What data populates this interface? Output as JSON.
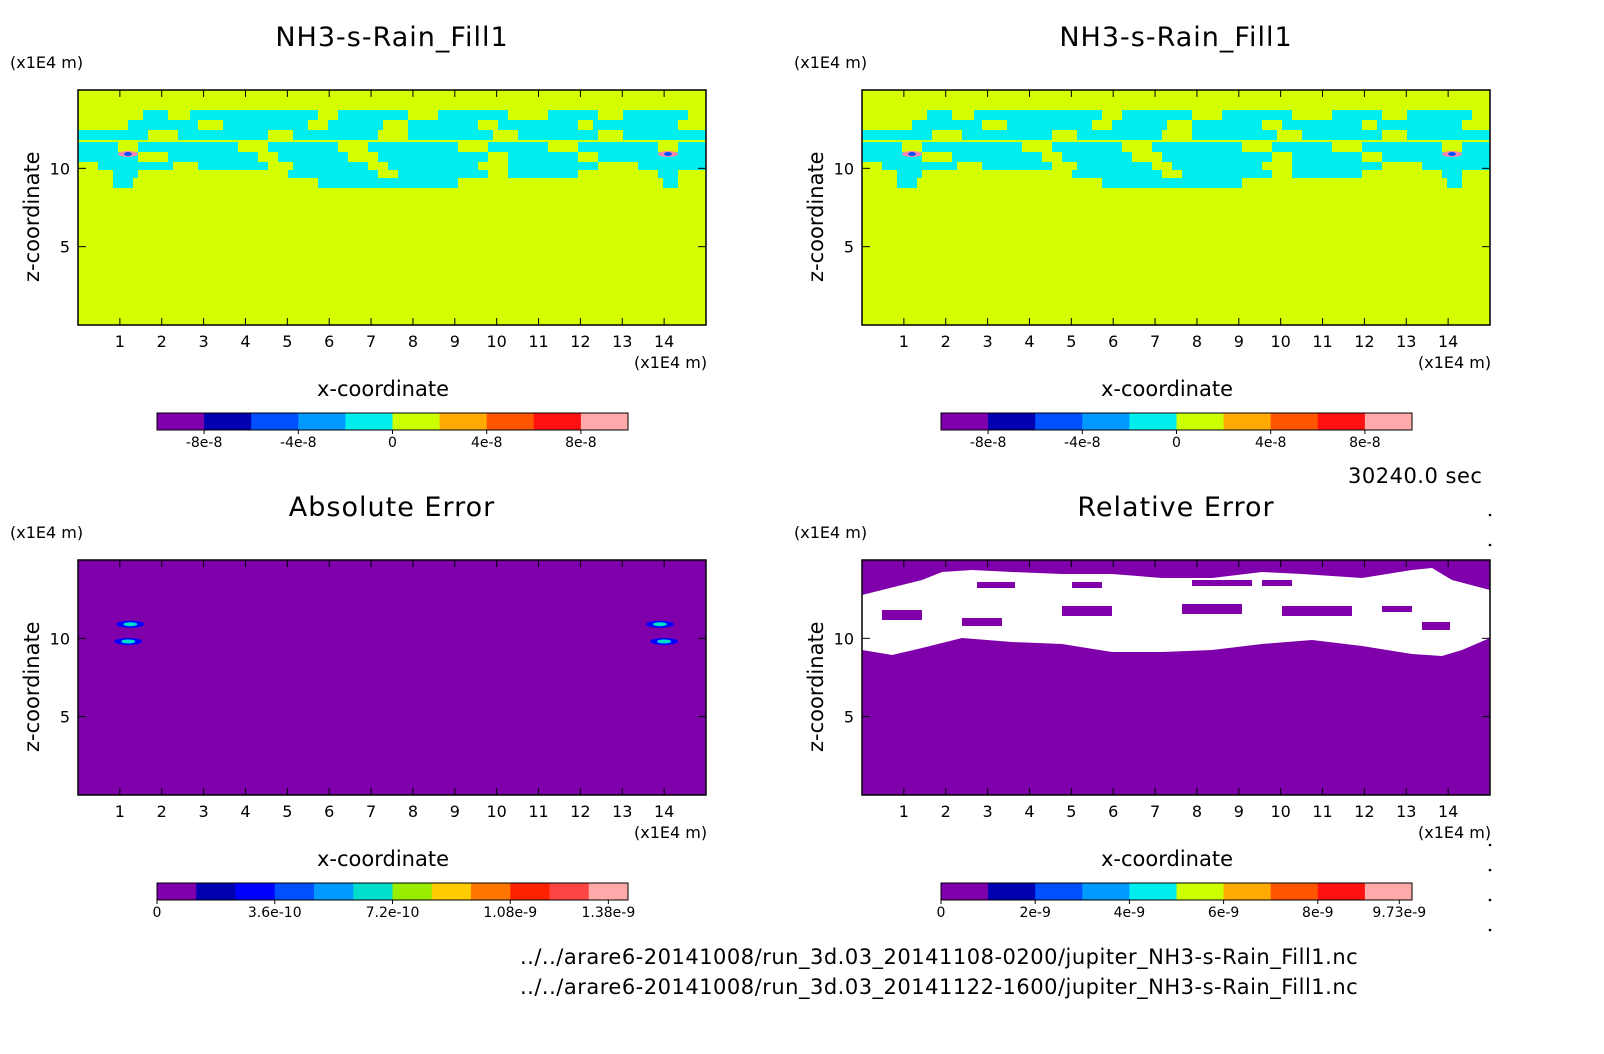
{
  "panels": [
    {
      "id": "tl",
      "title": "NH3-s-Rain_Fill1",
      "ylabel": "z-coordinate",
      "xlabel": "x-coordinate",
      "yunit": "(x1E4 m)",
      "xunit": "(x1E4 m)",
      "colorbar": {
        "colors": [
          "#7f00aa",
          "#0000b0",
          "#0050ff",
          "#0099ff",
          "#00eeee",
          "#ccff00",
          "#ffaa00",
          "#ff5500",
          "#ff1111",
          "#ffaaaa"
        ],
        "labels": [
          "-8e-8",
          "-4e-8",
          "0",
          "4e-8",
          "8e-8"
        ]
      }
    },
    {
      "id": "tr",
      "title": "NH3-s-Rain_Fill1",
      "ylabel": "z-coordinate",
      "xlabel": "x-coordinate",
      "yunit": "(x1E4 m)",
      "xunit": "(x1E4 m)",
      "colorbar": {
        "colors": [
          "#7f00aa",
          "#0000b0",
          "#0050ff",
          "#0099ff",
          "#00eeee",
          "#ccff00",
          "#ffaa00",
          "#ff5500",
          "#ff1111",
          "#ffaaaa"
        ],
        "labels": [
          "-8e-8",
          "-4e-8",
          "0",
          "4e-8",
          "8e-8"
        ]
      }
    },
    {
      "id": "bl",
      "title": "Absolute Error",
      "ylabel": "z-coordinate",
      "xlabel": "x-coordinate",
      "yunit": "(x1E4 m)",
      "xunit": "(x1E4 m)",
      "colorbar": {
        "colors": [
          "#7f00aa",
          "#0000b0",
          "#0000ff",
          "#0050ff",
          "#0099ff",
          "#00ddcc",
          "#99ee00",
          "#ffcc00",
          "#ff7700",
          "#ff2200",
          "#ff4444",
          "#ffaaaa"
        ],
        "labels": [
          "0",
          "3.6e-10",
          "7.2e-10",
          "1.08e-9",
          "1.38e-9"
        ]
      }
    },
    {
      "id": "br",
      "title": "Relative Error",
      "ylabel": "z-coordinate",
      "xlabel": "x-coordinate",
      "yunit": "(x1E4 m)",
      "xunit": "(x1E4 m)",
      "colorbar": {
        "colors": [
          "#7f00aa",
          "#0000b0",
          "#0050ff",
          "#0099ff",
          "#00eeee",
          "#ccff00",
          "#ffaa00",
          "#ff5500",
          "#ff1111",
          "#ffaaaa"
        ],
        "labels": [
          "0",
          "2e-9",
          "4e-9",
          "6e-9",
          "8e-9",
          "9.73e-9"
        ]
      }
    }
  ],
  "time_label": "30240.0 sec",
  "file_paths": [
    "../../arare6-20141008/run_3d.03_20141108-0200/jupiter_NH3-s-Rain_Fill1.nc",
    "../../arare6-20141008/run_3d.03_20141122-1600/jupiter_NH3-s-Rain_Fill1.nc"
  ],
  "chart_data": [
    {
      "type": "heatmap",
      "title": "NH3-s-Rain_Fill1",
      "xlabel": "x-coordinate",
      "ylabel": "z-coordinate",
      "xunit": "(x1E4 m)",
      "yunit": "(x1E4 m)",
      "xlim": [
        0,
        15
      ],
      "ylim": [
        0,
        15
      ],
      "xticks": [
        1,
        2,
        3,
        4,
        5,
        6,
        7,
        8,
        9,
        10,
        11,
        12,
        13,
        14
      ],
      "yticks": [
        5,
        10
      ],
      "background_value": "0 to 2e-8",
      "cloud_layer_z": [
        10,
        14
      ],
      "cloud_value": "0 to -2e-8",
      "colorbar_labels": [
        "-8e-8",
        "-4e-8",
        "0",
        "4e-8",
        "8e-8"
      ]
    },
    {
      "type": "heatmap",
      "title": "NH3-s-Rain_Fill1",
      "xlabel": "x-coordinate",
      "ylabel": "z-coordinate",
      "xunit": "(x1E4 m)",
      "yunit": "(x1E4 m)",
      "xlim": [
        0,
        15
      ],
      "ylim": [
        0,
        15
      ],
      "xticks": [
        1,
        2,
        3,
        4,
        5,
        6,
        7,
        8,
        9,
        10,
        11,
        12,
        13,
        14
      ],
      "yticks": [
        5,
        10
      ],
      "background_value": "0 to 2e-8",
      "cloud_layer_z": [
        10,
        14
      ],
      "cloud_value": "0 to -2e-8",
      "colorbar_labels": [
        "-8e-8",
        "-4e-8",
        "0",
        "4e-8",
        "8e-8"
      ]
    },
    {
      "type": "heatmap",
      "title": "Absolute Error",
      "xlabel": "x-coordinate",
      "ylabel": "z-coordinate",
      "xunit": "(x1E4 m)",
      "yunit": "(x1E4 m)",
      "xlim": [
        0,
        15
      ],
      "ylim": [
        0,
        15
      ],
      "xticks": [
        1,
        2,
        3,
        4,
        5,
        6,
        7,
        8,
        9,
        10,
        11,
        12,
        13,
        14
      ],
      "yticks": [
        5,
        10
      ],
      "background_value": 0,
      "hotspots": [
        {
          "x": 1.25,
          "z": 10.9
        },
        {
          "x": 1.2,
          "z": 9.8
        },
        {
          "x": 13.9,
          "z": 10.9
        },
        {
          "x": 14.0,
          "z": 9.8
        }
      ],
      "colorbar_labels": [
        "0",
        "3.6e-10",
        "7.2e-10",
        "1.08e-9",
        "1.38e-9"
      ]
    },
    {
      "type": "heatmap",
      "title": "Relative Error",
      "xlabel": "x-coordinate",
      "ylabel": "z-coordinate",
      "xunit": "(x1E4 m)",
      "yunit": "(x1E4 m)",
      "xlim": [
        0,
        15
      ],
      "ylim": [
        0,
        15
      ],
      "xticks": [
        1,
        2,
        3,
        4,
        5,
        6,
        7,
        8,
        9,
        10,
        11,
        12,
        13,
        14
      ],
      "yticks": [
        5,
        10
      ],
      "background_value": 0,
      "undefined_region_z": [
        9,
        14.5
      ],
      "colorbar_labels": [
        "0",
        "2e-9",
        "4e-9",
        "6e-9",
        "8e-9",
        "9.73e-9"
      ]
    }
  ]
}
